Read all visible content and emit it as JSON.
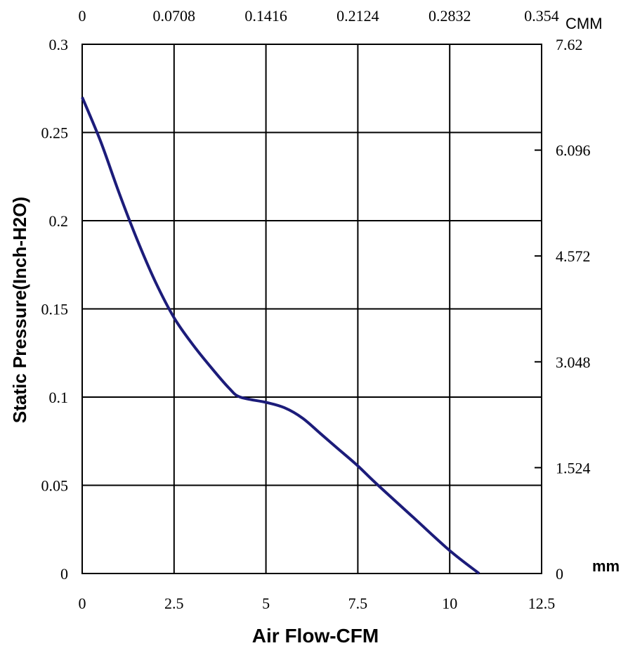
{
  "chart_data": {
    "type": "line",
    "xlabel": "Air Flow-CFM",
    "ylabel": "Static Pressure(Inch-H2O)",
    "x2label": "CMM",
    "y2label": "mm",
    "xlim": [
      0,
      12.5
    ],
    "ylim": [
      0,
      0.3
    ],
    "y2lim": [
      0,
      7.62
    ],
    "xticks": [
      "0",
      "2.5",
      "5",
      "7.5",
      "10",
      "12.5"
    ],
    "yticks": [
      "0",
      "0.05",
      "0.1",
      "0.15",
      "0.2",
      "0.25",
      "0.3"
    ],
    "x2ticks": [
      "0",
      "0.0708",
      "0.1416",
      "0.2124",
      "0.2832",
      "0.354"
    ],
    "y2ticks": [
      "0",
      "1.524",
      "3.048",
      "4.572",
      "6.096",
      "7.62"
    ],
    "grid": true,
    "series": [
      {
        "color": "#1c1c7a",
        "x": [
          0,
          0.5,
          1.0,
          1.5,
          2.0,
          2.5,
          3.0,
          3.5,
          4.0,
          4.3,
          5.0,
          5.5,
          6.0,
          6.5,
          7.0,
          7.5,
          8.0,
          9.0,
          10.0,
          10.8
        ],
        "y": [
          0.27,
          0.245,
          0.216,
          0.189,
          0.165,
          0.145,
          0.13,
          0.117,
          0.105,
          0.1,
          0.097,
          0.094,
          0.088,
          0.079,
          0.07,
          0.061,
          0.051,
          0.032,
          0.013,
          0.0
        ]
      }
    ]
  }
}
